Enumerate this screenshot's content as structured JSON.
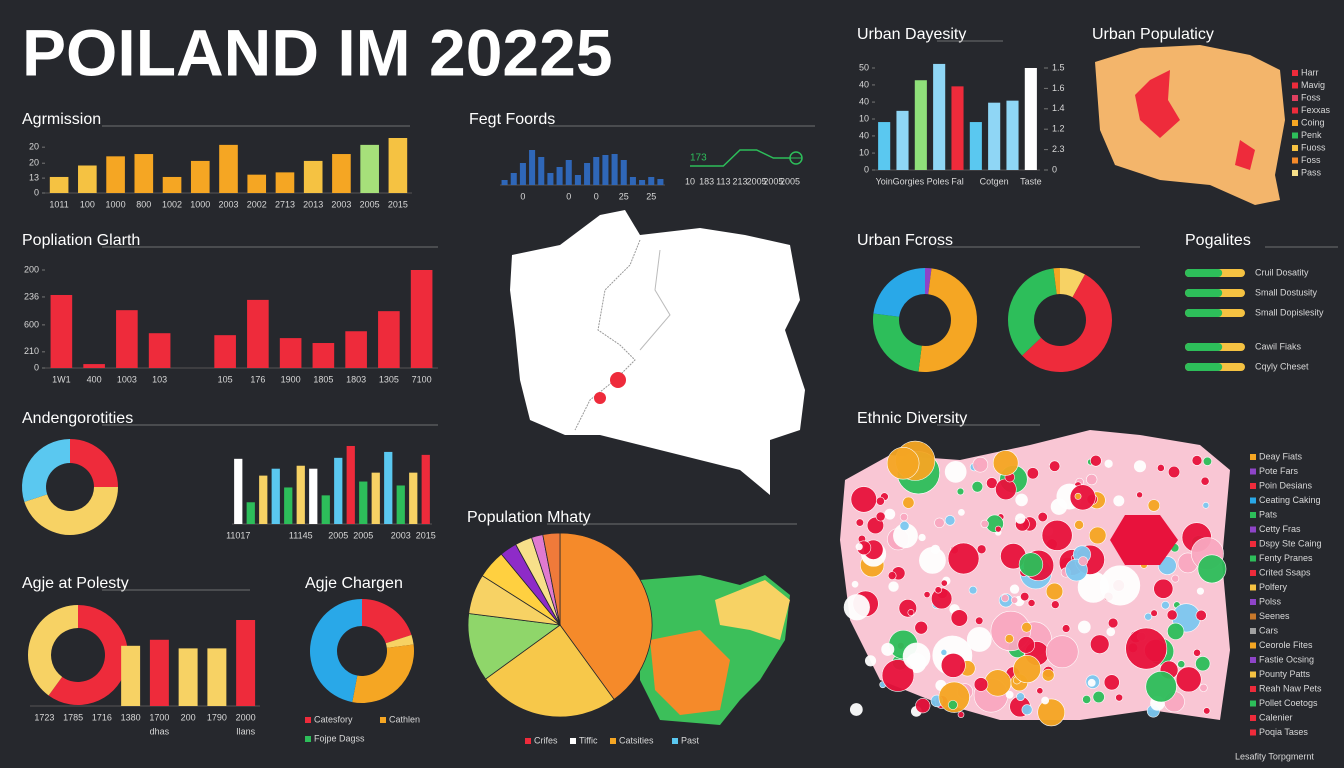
{
  "title": "POILAND IM 20225",
  "chart_data": [
    {
      "type": "bar",
      "title": "Agrmission",
      "categories": [
        "1011",
        "100",
        "1000",
        "800",
        "1002",
        "1000",
        "2003",
        "2002",
        "2713",
        "2013",
        "2003",
        "2005",
        "2015"
      ],
      "values": [
        7,
        12,
        16,
        17,
        7,
        14,
        21,
        8,
        9,
        14,
        17,
        21,
        24
      ],
      "colors": [
        "#f5c242",
        "#f5c242",
        "#f5a623",
        "#f5a623",
        "#f5a623",
        "#f5a623",
        "#f5a623",
        "#f5a623",
        "#f5a623",
        "#f5c242",
        "#f5a623",
        "#a6e07a",
        "#f5c242"
      ],
      "ylim": [
        0,
        24
      ],
      "yticks": [
        0,
        {
          "value": 6.5,
          "label": "13"
        },
        {
          "value": 13,
          "label": "20"
        },
        20
      ]
    },
    {
      "type": "bar",
      "title": "Popliation Glarth",
      "categories": [
        "1W1",
        "400",
        "1003",
        "103",
        null,
        "105",
        "176",
        "1900",
        "1805",
        "1803",
        "1305",
        "7100"
      ],
      "values": [
        149,
        8,
        118,
        71,
        null,
        67,
        139,
        61,
        51,
        75,
        116,
        200
      ],
      "color": "#ee2b3b",
      "ylim": [
        0,
        200
      ],
      "yticks": [
        0,
        {
          "value": 33,
          "label": "210"
        },
        {
          "value": 88,
          "label": "600"
        },
        {
          "value": 145,
          "label": "236"
        },
        200
      ]
    },
    {
      "type": "donut",
      "title": "Andengorotities",
      "values": [
        25,
        45,
        30
      ],
      "colors": [
        "#ee2b3b",
        "#f7d264",
        "#5ac8f0"
      ]
    },
    {
      "type": "bar",
      "categories": [
        "11017",
        null,
        null,
        null,
        null,
        "11145",
        null,
        null,
        "2005",
        null,
        "2005",
        null,
        null,
        "2003",
        null,
        "2015"
      ],
      "values": [
        66,
        22,
        49,
        56,
        37,
        59,
        56,
        29,
        67,
        79,
        43,
        52,
        73,
        39,
        52,
        70
      ],
      "colors": [
        "#ffffff",
        "#2dbe5a",
        "#f7d264",
        "#5ac8f0",
        "#2dbe5a",
        "#f7d264",
        "#ffffff",
        "#2dbe5a",
        "#5ac8f0",
        "#ee2b3b",
        "#2dbe5a",
        "#f7d264",
        "#5ac8f0",
        "#2dbe5a",
        "#f7d264",
        "#ee2b3b"
      ],
      "ylim": [
        0,
        80
      ]
    },
    {
      "type": "donut",
      "title": "Agje at Polesty",
      "values": [
        60,
        40
      ],
      "colors": [
        "#ee2b3b",
        "#f7d264"
      ]
    },
    {
      "type": "bar",
      "categories": [
        "1723",
        "1785",
        "1716",
        "1380",
        "1700",
        "200",
        "1790",
        "2000"
      ],
      "sublabels": [
        null,
        null,
        null,
        null,
        "dhas",
        null,
        null,
        "Ilans"
      ],
      "values": [
        null,
        null,
        null,
        70,
        77,
        67,
        67,
        100
      ],
      "colors": [
        "#f7d264",
        "#f7d264",
        "#f7d264",
        "#f7d264",
        "#ee2b3b",
        "#f7d264",
        "#f7d264",
        "#ee2b3b"
      ],
      "ylim": [
        0,
        100
      ]
    },
    {
      "type": "donut",
      "title": "Agje Chargen",
      "values": [
        20,
        3,
        30,
        47
      ],
      "colors": [
        "#ee2b3b",
        "#f7d264",
        "#f5a623",
        "#29a8e8"
      ],
      "legend": [
        {
          "name": "Catesfory",
          "color": "#ee2b3b"
        },
        {
          "name": "Cathlen",
          "color": "#f5a623"
        },
        {
          "name": "Fojpe Dagss",
          "color": "#2dbe5a"
        }
      ]
    },
    {
      "type": "bar",
      "title": "Fegt Foords",
      "categories": [
        null,
        null,
        "0",
        null,
        null,
        null,
        null,
        "0",
        null,
        null,
        "0",
        null,
        null,
        "25",
        null,
        null,
        "25",
        null
      ],
      "values": [
        5,
        12,
        22,
        35,
        28,
        12,
        18,
        25,
        10,
        22,
        28,
        30,
        31,
        25,
        8,
        5,
        8,
        6
      ],
      "color": "#2f67b8",
      "ylim": [
        0,
        40
      ]
    },
    {
      "type": "line",
      "categories": [
        "10",
        "183",
        "113",
        "213",
        "2005",
        "2005",
        "2005"
      ],
      "values": [
        0,
        0,
        0,
        10,
        10,
        5,
        5
      ],
      "note": "173",
      "color": "#2dbe5a",
      "ylim": [
        0,
        10
      ]
    },
    {
      "type": "bar",
      "title": "Urban Dayesity",
      "categories": [
        "Yoin",
        null,
        "Gorgies Poles",
        null,
        "Fal",
        null,
        "Cotgen",
        null,
        "Taste"
      ],
      "values": [
        23.5,
        29,
        44,
        52,
        41,
        23.5,
        33,
        34,
        50
      ],
      "colors": [
        "#5ac8f0",
        "#8fd6f5",
        "#8fe07a",
        "#8fd6f5",
        "#ee2b3b",
        "#5ac8f0",
        "#8fd6f5",
        "#8fd6f5",
        "#ffffff"
      ],
      "ylim": [
        0,
        50
      ],
      "yticks": [
        0,
        {
          "value": 8.3,
          "label": "10"
        },
        {
          "value": 16.7,
          "label": "40"
        },
        {
          "value": 25,
          "label": "10"
        },
        {
          "value": 33.3,
          "label": "40"
        },
        {
          "value": 41.7,
          "label": "40"
        },
        50
      ],
      "y2lim": [
        0,
        2.5
      ],
      "y2ticks": [
        0,
        {
          "value": 0.5,
          "label": "2.3"
        },
        {
          "value": 1,
          "label": "1.2"
        },
        {
          "value": 1.5,
          "label": "1.4"
        },
        {
          "value": 2,
          "label": "1.6"
        },
        {
          "value": 2.5,
          "label": "1.5"
        }
      ]
    },
    {
      "type": "donut",
      "title": "Urban Fcross",
      "values": [
        2,
        50,
        25,
        23
      ],
      "colors": [
        "#8e44c8",
        "#f5a623",
        "#2dbe5a",
        "#29a8e8"
      ]
    },
    {
      "type": "donut",
      "values": [
        8,
        55,
        35,
        2
      ],
      "colors": [
        "#f7d264",
        "#ee2b3b",
        "#2dbe5a",
        "#f5a623"
      ]
    },
    {
      "type": "progress",
      "title": "Pogalites",
      "categories": [
        "Cruil Dosatity",
        "Small Dostusity",
        "Small Dopislesity",
        "Cawil Fiaks",
        "Cqyly Cheset"
      ],
      "values": [
        62,
        62,
        62,
        62,
        62
      ],
      "color": "#2dbe5a",
      "ylim": [
        0,
        100
      ]
    },
    {
      "type": "pie",
      "title": "Population Mhaty",
      "values": [
        40,
        25,
        12,
        7,
        5,
        3,
        3,
        2,
        3
      ],
      "colors": [
        "#f58a2a",
        "#f7c84a",
        "#8fd66a",
        "#f7d264",
        "#ffd040",
        "#8e2bc8",
        "#f7e08a",
        "#e07ad0",
        "#f07a3a"
      ],
      "legend": [
        {
          "name": "Crifes",
          "color": "#ee2b3b"
        },
        {
          "name": "Tiffic",
          "color": "#ffffff"
        },
        {
          "name": "Catsities",
          "color": "#f5a623"
        },
        {
          "name": "Past",
          "color": "#5ac8f0"
        }
      ]
    },
    {
      "type": "map",
      "title": "Urban Populaticy",
      "legend": [
        {
          "name": "Harr",
          "color": "#ee2b3b"
        },
        {
          "name": "Mavig",
          "color": "#ee2b3b"
        },
        {
          "name": "Foss",
          "color": "#e04060"
        },
        {
          "name": "Fexxas",
          "color": "#ee2b3b"
        },
        {
          "name": "Coing",
          "color": "#f5a623"
        },
        {
          "name": "Penk",
          "color": "#2dbe5a"
        },
        {
          "name": "Fuoss",
          "color": "#f5c242"
        },
        {
          "name": "Foss",
          "color": "#f58a2a"
        },
        {
          "name": "Pass",
          "color": "#f7e08a"
        }
      ]
    },
    {
      "type": "map",
      "title": "Ethnic Diversity",
      "footer": "Lesafity Torpgmernt",
      "legend": [
        {
          "name": "Deay Fiats",
          "color": "#f5a623"
        },
        {
          "name": "Pote Fars",
          "color": "#8e44c8"
        },
        {
          "name": "Poin Desians",
          "color": "#ee2b3b"
        },
        {
          "name": "Ceating Caking",
          "color": "#29a8e8"
        },
        {
          "name": "Pats",
          "color": "#2dbe5a"
        },
        {
          "name": "Cetty Fras",
          "color": "#8e44c8"
        },
        {
          "name": "Dspy Ste Caing",
          "color": "#ee2b3b"
        },
        {
          "name": "Fenty Pranes",
          "color": "#2dbe5a"
        },
        {
          "name": "Crited Ssaps",
          "color": "#ee2b3b"
        },
        {
          "name": "Polfery",
          "color": "#f5c242"
        },
        {
          "name": "Polss",
          "color": "#8e44c8"
        },
        {
          "name": "Seenes",
          "color": "#c8782a"
        },
        {
          "name": "Cars",
          "color": "#a0a0a0"
        },
        {
          "name": "Ceorole Fites",
          "color": "#f5a623"
        },
        {
          "name": "Fastie Ocsing",
          "color": "#8e44c8"
        },
        {
          "name": "Pounty Patts",
          "color": "#f5c242"
        },
        {
          "name": "Reah Naw Pets",
          "color": "#ee2b3b"
        },
        {
          "name": "Pollet Coetogs",
          "color": "#2dbe5a"
        },
        {
          "name": "Calenier",
          "color": "#ee2b3b"
        },
        {
          "name": "Poqia Tases",
          "color": "#ee2b3b"
        }
      ]
    }
  ]
}
